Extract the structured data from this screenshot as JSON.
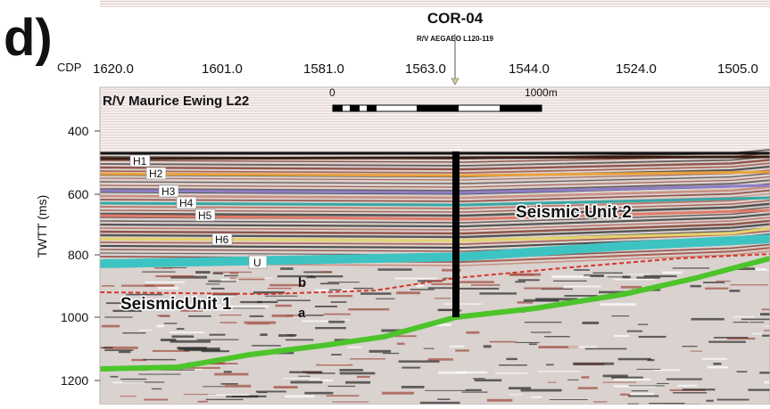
{
  "panel_label": "d)",
  "core": {
    "name": "COR-04",
    "subtitle": "R/V AEGAEO L120-119"
  },
  "cdp": {
    "label": "CDP",
    "ticks": [
      "1620.0",
      "1601.0",
      "1581.0",
      "1563.0",
      "1544.0",
      "1524.0",
      "1505.0"
    ]
  },
  "profile_title": "R/V Maurice Ewing L22",
  "scale_bar": {
    "start_label": "0",
    "end_label": "1000m"
  },
  "y_axis": {
    "label": "TWTT (ms)",
    "ticks": [
      "400",
      "600",
      "800",
      "1000",
      "1200"
    ]
  },
  "horizons": [
    {
      "name": "H1",
      "color": "#3a1f12"
    },
    {
      "name": "H2",
      "color": "#e8a23c"
    },
    {
      "name": "H3",
      "color": "#8c7ec9"
    },
    {
      "name": "H4",
      "color": "#36a8a6"
    },
    {
      "name": "H5",
      "color": "#e07a6a"
    },
    {
      "name": "H6",
      "color": "#e6d36a"
    },
    {
      "name": "U",
      "color": "#3ec3c3"
    }
  ],
  "reflectors": [
    {
      "name": "b",
      "color": "#d8362a"
    },
    {
      "name": "a",
      "color": "#4cc42a"
    }
  ],
  "units": [
    {
      "name": "Seismic Unit 2"
    },
    {
      "name": "SeismicUnit 1"
    }
  ]
}
